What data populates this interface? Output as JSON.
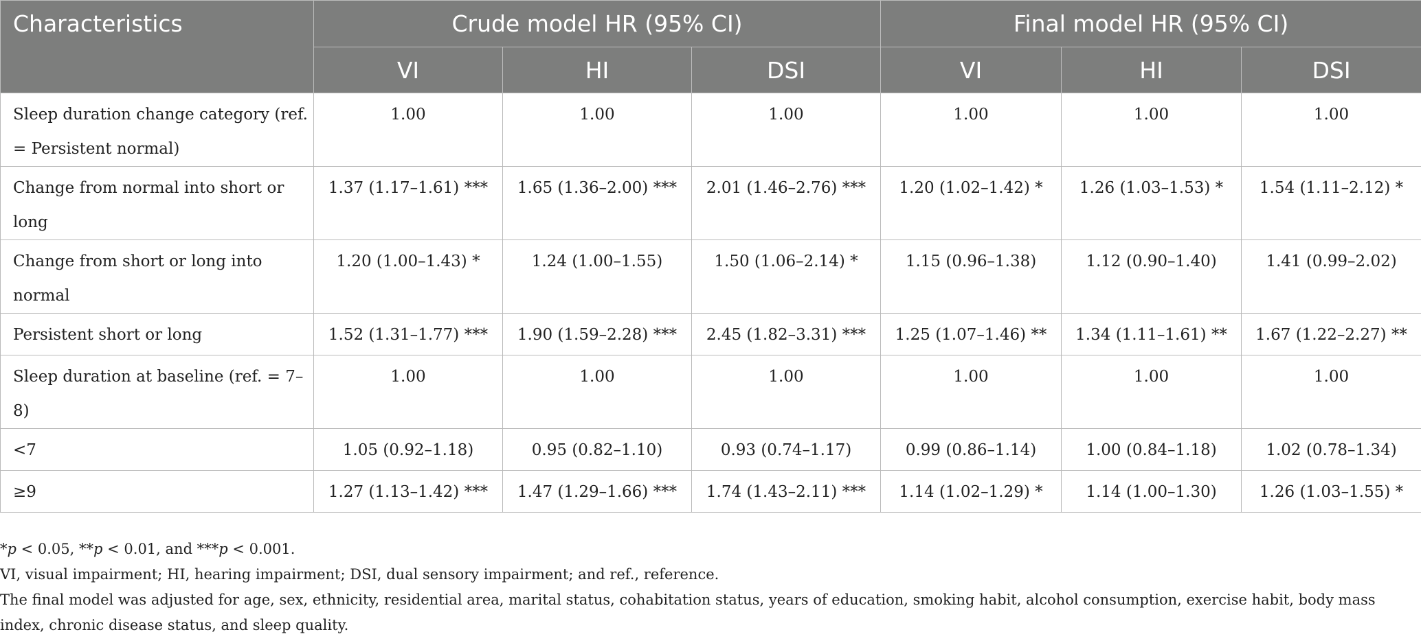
{
  "table": {
    "header": {
      "characteristics": "Characteristics",
      "crude_group": "Crude model HR (95% CI)",
      "final_group": "Final model HR (95% CI)",
      "sub": [
        "VI",
        "HI",
        "DSI",
        "VI",
        "HI",
        "DSI"
      ]
    },
    "rows": [
      {
        "label": "Sleep duration change category (ref. = Persistent normal)",
        "cells": [
          "1.00",
          "1.00",
          "1.00",
          "1.00",
          "1.00",
          "1.00"
        ]
      },
      {
        "label": "Change from normal into short or long",
        "cells": [
          "1.37 (1.17–1.61) ***",
          "1.65 (1.36–2.00) ***",
          "2.01 (1.46–2.76) ***",
          "1.20 (1.02–1.42) *",
          "1.26 (1.03–1.53) *",
          "1.54 (1.11–2.12) *"
        ]
      },
      {
        "label": "Change from short or long into normal",
        "cells": [
          "1.20 (1.00–1.43) *",
          "1.24 (1.00–1.55)",
          "1.50 (1.06–2.14) *",
          "1.15 (0.96–1.38)",
          "1.12 (0.90–1.40)",
          "1.41 (0.99–2.02)"
        ]
      },
      {
        "label": "Persistent short or long",
        "cells": [
          "1.52 (1.31–1.77) ***",
          "1.90 (1.59–2.28) ***",
          "2.45 (1.82–3.31) ***",
          "1.25 (1.07–1.46) **",
          "1.34 (1.11–1.61) **",
          "1.67 (1.22–2.27) **"
        ]
      },
      {
        "label": "Sleep duration at baseline (ref. = 7–8)",
        "cells": [
          "1.00",
          "1.00",
          "1.00",
          "1.00",
          "1.00",
          "1.00"
        ]
      },
      {
        "label": "<7",
        "cells": [
          "1.05 (0.92–1.18)",
          "0.95 (0.82–1.10)",
          "0.93 (0.74–1.17)",
          "0.99 (0.86–1.14)",
          "1.00 (0.84–1.18)",
          "1.02 (0.78–1.34)"
        ]
      },
      {
        "label": "≥9",
        "cells": [
          "1.27 (1.13–1.42) ***",
          "1.47 (1.29–1.66) ***",
          "1.74 (1.43–2.11) ***",
          "1.14 (1.02–1.29) *",
          "1.14 (1.00–1.30)",
          "1.26 (1.03–1.55) *"
        ]
      }
    ]
  },
  "notes": {
    "sig": {
      "s1": "*",
      "p1": "p",
      "t1": " < 0.05, **",
      "p2": "p",
      "t2": " < 0.01, and ***",
      "p3": "p",
      "t3": " < 0.001."
    },
    "abbrev": "VI, visual impairment; HI, hearing impairment; DSI, dual sensory impairment; and ref., reference.",
    "adjust": "The final model was adjusted for age, sex, ethnicity, residential area, marital status, cohabitation status, years of education, smoking habit, alcohol consumption, exercise habit, body mass index, chronic disease status, and sleep quality."
  }
}
